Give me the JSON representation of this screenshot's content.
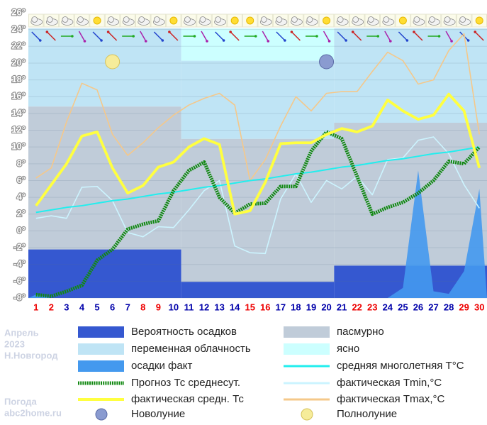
{
  "chart_data": {
    "type": "weather",
    "categories": [
      "1",
      "2",
      "3",
      "4",
      "5",
      "6",
      "7",
      "8",
      "9",
      "10",
      "11",
      "12",
      "13",
      "14",
      "15",
      "16",
      "17",
      "18",
      "19",
      "20",
      "21",
      "22",
      "23",
      "24",
      "25",
      "26",
      "27",
      "28",
      "29",
      "30"
    ],
    "category_colors": [
      "#ee0000",
      "#ee0000",
      "#0000aa",
      "#0000aa",
      "#0000aa",
      "#0000aa",
      "#0000aa",
      "#ee0000",
      "#ee0000",
      "#0000aa",
      "#0000aa",
      "#0000aa",
      "#0000aa",
      "#0000aa",
      "#ee0000",
      "#ee0000",
      "#0000aa",
      "#0000aa",
      "#0000aa",
      "#0000aa",
      "#0000aa",
      "#ee0000",
      "#ee0000",
      "#0000aa",
      "#0000aa",
      "#0000aa",
      "#0000aa",
      "#0000aa",
      "#ee0000",
      "#ee0000"
    ],
    "ylim": [
      -8,
      26
    ],
    "yticks": [
      {
        "value": -8,
        "label": "-8°"
      },
      {
        "value": -6,
        "label": "-6°"
      },
      {
        "value": -4,
        "label": "-4°"
      },
      {
        "value": -2,
        "label": "-2°"
      },
      {
        "value": 0,
        "label": "0°"
      },
      {
        "value": 2,
        "label": "2°"
      },
      {
        "value": 4,
        "label": "4°"
      },
      {
        "value": 6,
        "label": "6°"
      },
      {
        "value": 8,
        "label": "8°"
      },
      {
        "value": 10,
        "label": "10°"
      },
      {
        "value": 12,
        "label": "12°"
      },
      {
        "value": 14,
        "label": "14°"
      },
      {
        "value": 16,
        "label": "16°"
      },
      {
        "value": 18,
        "label": "18°"
      },
      {
        "value": 20,
        "label": "20°"
      },
      {
        "value": 22,
        "label": "22°"
      },
      {
        "value": 24,
        "label": "24°"
      },
      {
        "value": 26,
        "label": "26°"
      }
    ],
    "grid": true,
    "sky": {
      "periods": [
        {
          "from": 1,
          "to": 10
        },
        {
          "from": 11,
          "to": 20
        },
        {
          "from": 21,
          "to": 30
        }
      ],
      "layers": [
        {
          "name": "ясно",
          "color": "#ccffff",
          "values": [
            0,
            12,
            0
          ]
        },
        {
          "name": "переменная облачность",
          "color": "#bfe4f5",
          "values": [
            29,
            29,
            35
          ]
        },
        {
          "name": "пасмурно",
          "color": "#c0ccd9",
          "values": [
            53,
            53,
            53
          ]
        },
        {
          "name": "Вероятность осадков",
          "color": "#3558d0",
          "values": [
            18,
            6,
            12
          ]
        }
      ]
    },
    "series": [
      {
        "name": "Прогноз Тс среднесут.",
        "color": "#118811",
        "style": "dotted",
        "values": [
          -7.6,
          -7.8,
          -7.2,
          -6.5,
          -3.5,
          -2.2,
          0.2,
          0.8,
          1.2,
          4.8,
          7.2,
          8.2,
          4,
          2.1,
          3.2,
          3.3,
          5.3,
          5.3,
          9.5,
          11.8,
          11,
          6.5,
          2,
          2.8,
          3.4,
          4.5,
          6,
          8.3,
          8,
          10
        ]
      },
      {
        "name": "фактическая средн. Тс",
        "color": "#ffff40",
        "style": "thick",
        "values": [
          3,
          5.5,
          8,
          11.3,
          11.8,
          7.5,
          4.5,
          5.4,
          7.6,
          8.2,
          10,
          11,
          10.3,
          2,
          2.4,
          5.8,
          10.4,
          10.5,
          10.5,
          11.5,
          12.2,
          11.8,
          12.5,
          15.6,
          14.3,
          13.3,
          13.8,
          16.3,
          14.3,
          7.5
        ]
      },
      {
        "name": "фактическая Tmin,°C",
        "color": "#ccf4ff",
        "style": "thin",
        "values": [
          1.5,
          1.8,
          1.5,
          5.2,
          5.3,
          3.6,
          -0.2,
          -0.7,
          0.5,
          0.4,
          2.5,
          4.8,
          6,
          -1.8,
          -2.6,
          -2.7,
          3.8,
          6.8,
          3.4,
          6,
          5,
          6.5,
          4.3,
          8.5,
          8.7,
          10.8,
          11.2,
          9.2,
          5.5,
          2.7
        ]
      },
      {
        "name": "фактическая Tmax,°C",
        "color": "#f5c88a",
        "style": "thin",
        "values": [
          6.3,
          7.5,
          13,
          17.6,
          16.8,
          11.5,
          9,
          10.5,
          12.3,
          13.8,
          15,
          15.8,
          16.4,
          15,
          6,
          8.5,
          12.5,
          16,
          14.3,
          16.4,
          16.6,
          16.6,
          19,
          21.3,
          20.3,
          17.5,
          18,
          21.5,
          23.5,
          11.5
        ]
      },
      {
        "name": "средняя многолетняя T°C",
        "color": "#22eeee",
        "style": "medium",
        "values": [
          2.2,
          2.5,
          2.8,
          3,
          3.3,
          3.6,
          3.8,
          4.1,
          4.4,
          4.6,
          4.9,
          5.2,
          5.4,
          5.7,
          6,
          6.2,
          6.5,
          6.8,
          7,
          7.3,
          7.6,
          7.8,
          8.1,
          8.4,
          8.6,
          8.9,
          9.2,
          9.4,
          9.7,
          10
        ]
      },
      {
        "name": "осадки факт",
        "color": "#4499ee",
        "style": "area",
        "values": [
          -7.6,
          -8,
          -8,
          -8,
          -8,
          -8,
          -8,
          -8,
          -8,
          -8,
          -8,
          -8,
          -8,
          -8,
          -8,
          -8,
          -8,
          -8,
          -8,
          -8,
          -8,
          -8,
          -8,
          -8,
          -6.8,
          7.2,
          -7.2,
          -7.5,
          -4.8,
          5
        ]
      }
    ],
    "moon": {
      "new": {
        "name": "Новолуние",
        "day": 20
      },
      "full": {
        "name": "Полнолуние",
        "day": 6
      }
    },
    "info": {
      "month": "Апрель",
      "year": "2023",
      "city": "Н.Новгород",
      "source": "Погода",
      "site": "abc2home.ru"
    }
  }
}
